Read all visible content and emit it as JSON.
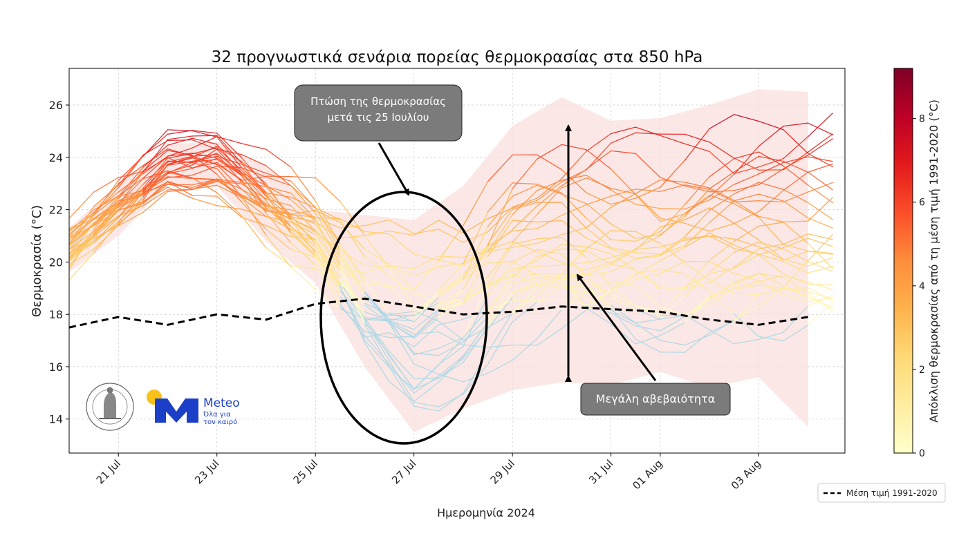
{
  "chart_data": {
    "type": "line",
    "title": "32 προγνωστικά σενάρια πορείας θερμοκρασίας στα 850 hPa",
    "xlabel": "Ημερομηνία 2024",
    "ylabel": "Θερμοκρασία (°C)",
    "ylim": [
      12.7,
      27.4
    ],
    "x_start": "2024-07-20",
    "x_end": "2024-08-04T18:00",
    "xticks": [
      {
        "date": "2024-07-21",
        "label": "21 Jul"
      },
      {
        "date": "2024-07-23",
        "label": "23 Jul"
      },
      {
        "date": "2024-07-25",
        "label": "25 Jul"
      },
      {
        "date": "2024-07-27",
        "label": "27 Jul"
      },
      {
        "date": "2024-07-29",
        "label": "29 Jul"
      },
      {
        "date": "2024-07-31",
        "label": "31 Jul"
      },
      {
        "date": "2024-08-01",
        "label": "01 Aug"
      },
      {
        "date": "2024-08-03",
        "label": "03 Aug"
      }
    ],
    "yticks": [
      14,
      16,
      18,
      20,
      22,
      24,
      26
    ],
    "grid": true,
    "legend_position": "lower-right",
    "ensemble": {
      "members": 32,
      "dates": [
        "2024-07-20",
        "2024-07-21",
        "2024-07-22",
        "2024-07-23",
        "2024-07-24",
        "2024-07-25",
        "2024-07-26",
        "2024-07-27",
        "2024-07-28",
        "2024-07-29",
        "2024-07-30",
        "2024-07-31",
        "2024-08-01",
        "2024-08-02",
        "2024-08-03",
        "2024-08-04"
      ],
      "center": [
        20.6,
        22.3,
        23.8,
        23.9,
        22.5,
        21.2,
        19.0,
        17.8,
        18.6,
        20.6,
        21.2,
        21.0,
        20.8,
        21.4,
        21.6,
        21.6
      ],
      "spread": [
        0.7,
        0.7,
        0.7,
        0.9,
        1.1,
        1.3,
        2.0,
        2.6,
        2.8,
        3.2,
        3.2,
        3.3,
        3.3,
        3.6,
        3.8,
        4.0
      ]
    },
    "envelope": {
      "dates": [
        "2024-07-20",
        "2024-07-21",
        "2024-07-22",
        "2024-07-23",
        "2024-07-24",
        "2024-07-25",
        "2024-07-26",
        "2024-07-27",
        "2024-07-28",
        "2024-07-29",
        "2024-07-30",
        "2024-07-31",
        "2024-08-01",
        "2024-08-02",
        "2024-08-03",
        "2024-08-04"
      ],
      "upper": [
        21.3,
        23.0,
        24.5,
        24.6,
        23.7,
        22.0,
        21.8,
        21.6,
        22.9,
        25.2,
        26.3,
        25.4,
        25.5,
        26.0,
        26.6,
        26.5
      ],
      "lower": [
        19.6,
        21.0,
        23.0,
        22.9,
        20.8,
        19.2,
        16.0,
        13.5,
        14.4,
        15.1,
        15.4,
        15.3,
        15.8,
        15.2,
        15.6,
        13.7
      ]
    },
    "series": [
      {
        "name": "Μέση τιμή 1991-2020",
        "style": "dashed",
        "color": "#000000",
        "dates": [
          "2024-07-20",
          "2024-07-21",
          "2024-07-22",
          "2024-07-23",
          "2024-07-24",
          "2024-07-25",
          "2024-07-26",
          "2024-07-27",
          "2024-07-28",
          "2024-07-29",
          "2024-07-30",
          "2024-07-31",
          "2024-08-01",
          "2024-08-02",
          "2024-08-03",
          "2024-08-04"
        ],
        "values": [
          17.5,
          17.9,
          17.6,
          18.0,
          17.8,
          18.4,
          18.6,
          18.3,
          18.0,
          18.1,
          18.3,
          18.2,
          18.1,
          17.8,
          17.6,
          17.9
        ]
      }
    ],
    "colorbar": {
      "label": "Απόκλιση θερμοκρασίας από τη μέση τιμή 1991-2020 (°C)",
      "min": 0,
      "max": 9.2,
      "ticks": [
        0,
        2,
        4,
        6,
        8
      ],
      "colors": [
        "#ffffcc",
        "#ffeda0",
        "#fed976",
        "#feb24c",
        "#fd8d3c",
        "#fc4e2a",
        "#e31a1c",
        "#bd0026",
        "#800026"
      ],
      "negative_color": "#add8e6"
    },
    "annotations": [
      {
        "text": "Πτώση της θερμοκρασίας μετά τις 25 Ιουλίου",
        "target": "ellipse around 25–28 Jul"
      },
      {
        "text": "Μεγάλη αβεβαιότητα",
        "target": "vertical spread 30 Jul, 15.5–25.3 °C"
      }
    ]
  },
  "logos": {
    "observatory_seal": "ΕΘΝΙΚΟ ΑΣΤΕΡΟΣΚΟΠΕΙΟ ΑΘΗΝΩΝ · NATIONAL OBSERVATORY OF ATHENS",
    "meteo_brand": "Meteo",
    "meteo_tagline_1": "Όλα για",
    "meteo_tagline_2": "τον καιρό"
  },
  "colors": {
    "envelope": "#f9dfdc",
    "annotation_box": "#7b7b7b",
    "meteo_blue": "#1b3fc7",
    "meteo_sun": "#f7c21a"
  }
}
